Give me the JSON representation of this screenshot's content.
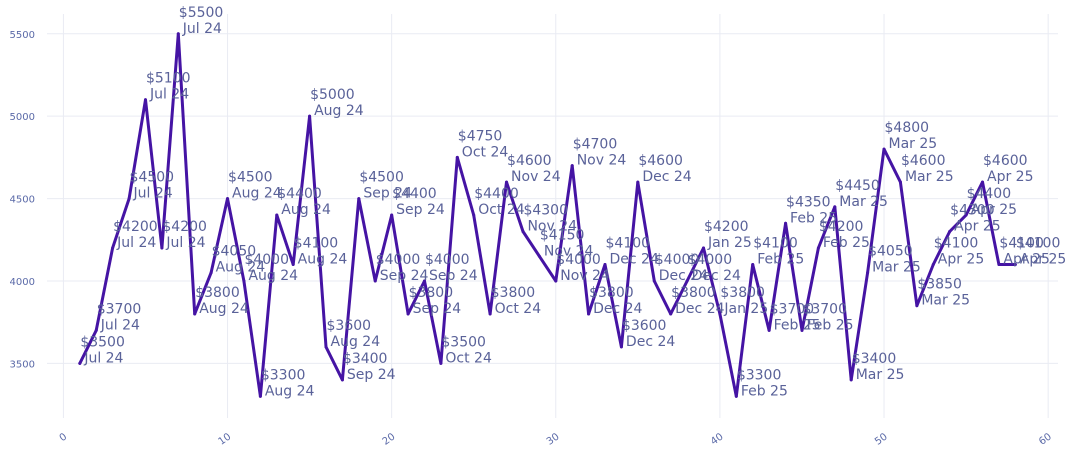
{
  "chart_data": {
    "type": "line",
    "title": "",
    "xlabel": "",
    "ylabel": "",
    "xlim": [
      -1,
      60.6
    ],
    "ylim": [
      3205,
      5620
    ],
    "x_ticks": [
      0,
      10,
      20,
      30,
      40,
      50,
      60
    ],
    "y_ticks": [
      3500,
      4000,
      4500,
      5000,
      5500
    ],
    "grid": true,
    "line_color": "#4514a4",
    "series": [
      {
        "x": [
          1,
          2,
          3,
          4,
          5,
          6,
          7,
          8,
          9,
          10,
          11,
          12,
          13,
          14,
          15,
          16,
          17,
          18,
          19,
          20,
          21,
          22,
          23,
          24,
          25,
          26,
          27,
          28,
          29,
          30,
          31,
          32,
          33,
          34,
          35,
          36,
          37,
          38,
          39,
          40,
          41,
          42,
          43,
          44,
          45,
          46,
          47,
          48,
          49,
          50,
          51,
          52,
          53,
          54,
          55,
          56,
          57,
          58
        ],
        "values": [
          3500,
          3700,
          4200,
          4500,
          5100,
          4200,
          5500,
          3800,
          4050,
          4500,
          4000,
          3300,
          4400,
          4100,
          5000,
          3600,
          3400,
          4500,
          4000,
          4400,
          3800,
          4000,
          3500,
          4750,
          4400,
          3800,
          4600,
          4300,
          4150,
          4000,
          4700,
          3800,
          4100,
          3600,
          4600,
          4000,
          3800,
          4000,
          4200,
          3800,
          3300,
          4100,
          3700,
          4350,
          3700,
          4200,
          4450,
          3400,
          4050,
          4800,
          4600,
          3850,
          4100,
          4300,
          4400,
          4600,
          4100,
          4100
        ],
        "labels": [
          [
            "$3500",
            "Jul 24"
          ],
          [
            "$3700",
            "Jul 24"
          ],
          [
            "$4200",
            "Jul 24"
          ],
          [
            "$4500",
            "Jul 24"
          ],
          [
            "$5100",
            "Jul 24"
          ],
          [
            "$4200",
            "Jul 24"
          ],
          [
            "$5500",
            "Jul 24"
          ],
          [
            "$3800",
            "Aug 24"
          ],
          [
            "$4050",
            "Aug 24"
          ],
          [
            "$4500",
            "Aug 24"
          ],
          [
            "$4000",
            "Aug 24"
          ],
          [
            "$3300",
            "Aug 24"
          ],
          [
            "$4400",
            "Aug 24"
          ],
          [
            "$4100",
            "Aug 24"
          ],
          [
            "$5000",
            "Aug 24"
          ],
          [
            "$3600",
            "Aug 24"
          ],
          [
            "$3400",
            "Sep 24"
          ],
          [
            "$4500",
            "Sep 24"
          ],
          [
            "$4000",
            "Sep 24"
          ],
          [
            "$4400",
            "Sep 24"
          ],
          [
            "$3800",
            "Sep 24"
          ],
          [
            "$4000",
            "Sep 24"
          ],
          [
            "$3500",
            "Oct 24"
          ],
          [
            "$4750",
            "Oct 24"
          ],
          [
            "$4400",
            "Oct 24"
          ],
          [
            "$3800",
            "Oct 24"
          ],
          [
            "$4600",
            "Nov 24"
          ],
          [
            "$4300",
            "Nov 24"
          ],
          [
            "$4150",
            "Nov 24"
          ],
          [
            "$4000",
            "Nov 24"
          ],
          [
            "$4700",
            "Nov 24"
          ],
          [
            "$3800",
            "Dec 24"
          ],
          [
            "$4100",
            "Dec 24"
          ],
          [
            "$3600",
            "Dec 24"
          ],
          [
            "$4600",
            "Dec 24"
          ],
          [
            "$4000",
            "Dec 24"
          ],
          [
            "$3800",
            "Dec 24"
          ],
          [
            "$4000",
            "Dec 24"
          ],
          [
            "$4200",
            "Jan 25"
          ],
          [
            "$3800",
            "Jan 25"
          ],
          [
            "$3300",
            "Feb 25"
          ],
          [
            "$4100",
            "Feb 25"
          ],
          [
            "$3700",
            "Feb 25"
          ],
          [
            "$4350",
            "Feb 25"
          ],
          [
            "$3700",
            "Feb 25"
          ],
          [
            "$4200",
            "Feb 25"
          ],
          [
            "$4450",
            "Mar 25"
          ],
          [
            "$3400",
            "Mar 25"
          ],
          [
            "$4050",
            "Mar 25"
          ],
          [
            "$4800",
            "Mar 25"
          ],
          [
            "$4600",
            "Mar 25"
          ],
          [
            "$3850",
            "Mar 25"
          ],
          [
            "$4100",
            "Apr 25"
          ],
          [
            "$4300",
            "Apr 25"
          ],
          [
            "$4400",
            "Apr 25"
          ],
          [
            "$4600",
            "Apr 25"
          ],
          [
            "$4100",
            "Apr 25"
          ],
          [
            "$4100",
            "Apr 25"
          ]
        ]
      }
    ]
  }
}
